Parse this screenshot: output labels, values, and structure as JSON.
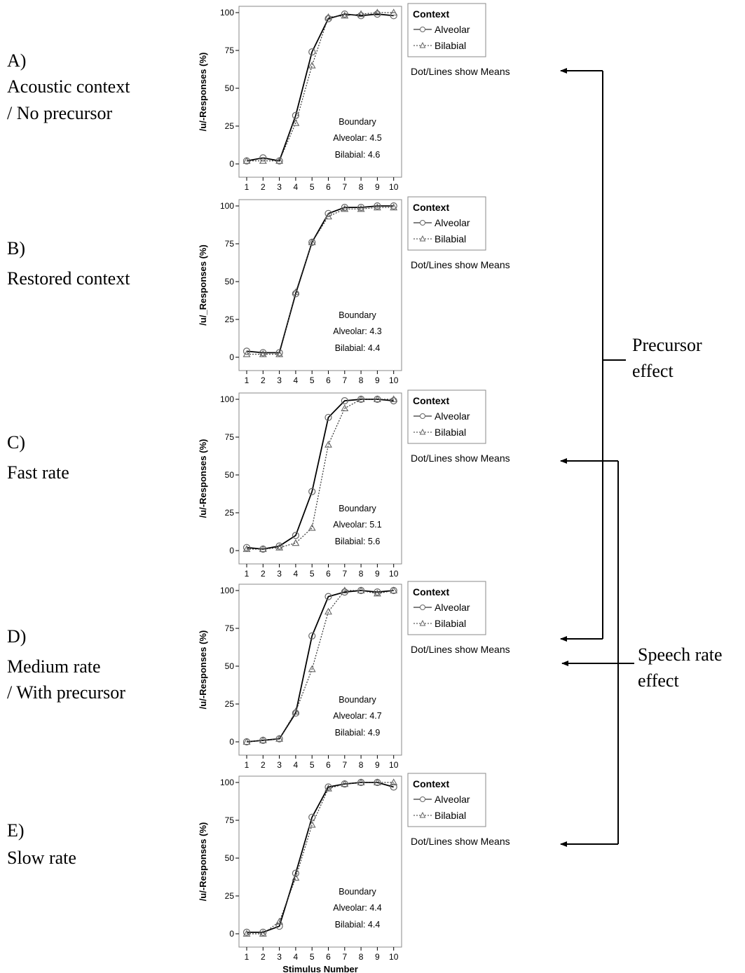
{
  "panels": [
    {
      "letter": "A)",
      "caption_lines": [
        "Acoustic context",
        "/ No precursor"
      ],
      "boundary": {
        "title": "Boundary",
        "alveolar": "Alveolar: 4.5",
        "bilabial": "Bilabial:  4.6"
      }
    },
    {
      "letter": "B)",
      "caption_lines": [
        "Restored context"
      ],
      "boundary": {
        "title": "Boundary",
        "alveolar": "Alveolar: 4.3",
        "bilabial": "Bilabial:  4.4"
      }
    },
    {
      "letter": "C)",
      "caption_lines": [
        "Fast rate"
      ],
      "boundary": {
        "title": "Boundary",
        "alveolar": "Alveolar: 5.1",
        "bilabial": "Bilabial:  5.6"
      }
    },
    {
      "letter": "D)",
      "caption_lines": [
        "Medium rate",
        "/ With precursor"
      ],
      "boundary": {
        "title": "Boundary",
        "alveolar": "Alveolar: 4.7",
        "bilabial": "Bilabial:  4.9"
      }
    },
    {
      "letter": "E)",
      "caption_lines": [
        "Slow rate"
      ],
      "boundary": {
        "title": "Boundary",
        "alveolar": "Alveolar: 4.4",
        "bilabial": "Bilabial:  4.4"
      }
    }
  ],
  "legend": {
    "title": "Context",
    "alveolar": "Alveolar",
    "bilabial": "Bilabial",
    "note": "Dot/Lines show Means"
  },
  "effects": {
    "precursor": [
      "Precursor",
      "effect"
    ],
    "speech_rate": [
      "Speech rate",
      "effect"
    ]
  },
  "chart_data": [
    {
      "type": "line",
      "xlabel": "",
      "ylabel": "/u/-Responses (%)",
      "x": [
        1,
        2,
        3,
        4,
        5,
        6,
        7,
        8,
        9,
        10
      ],
      "ylim": [
        0,
        100
      ],
      "yticks": [
        0,
        25,
        50,
        75,
        100
      ],
      "series": [
        {
          "name": "Alveolar",
          "marker": "circle",
          "line": "solid",
          "values": [
            2,
            4,
            2,
            32,
            74,
            96,
            99,
            98,
            99,
            98
          ]
        },
        {
          "name": "Bilabial",
          "marker": "triangle",
          "line": "dotted",
          "values": [
            2,
            2,
            2,
            27,
            65,
            97,
            98,
            99,
            100,
            100
          ]
        }
      ]
    },
    {
      "type": "line",
      "xlabel": "",
      "ylabel": "/u/_Responses (%)",
      "x": [
        1,
        2,
        3,
        4,
        5,
        6,
        7,
        8,
        9,
        10
      ],
      "ylim": [
        0,
        100
      ],
      "yticks": [
        0,
        25,
        50,
        75,
        100
      ],
      "series": [
        {
          "name": "Alveolar",
          "marker": "circle",
          "line": "solid",
          "values": [
            4,
            3,
            3,
            42,
            76,
            95,
            99,
            99,
            100,
            100
          ]
        },
        {
          "name": "Bilabial",
          "marker": "triangle",
          "line": "dotted",
          "values": [
            2,
            2,
            2,
            43,
            76,
            93,
            98,
            98,
            99,
            99
          ]
        }
      ]
    },
    {
      "type": "line",
      "xlabel": "",
      "ylabel": "/u/-Responses (%)",
      "x": [
        1,
        2,
        3,
        4,
        5,
        6,
        7,
        8,
        9,
        10
      ],
      "ylim": [
        0,
        100
      ],
      "yticks": [
        0,
        25,
        50,
        75,
        100
      ],
      "series": [
        {
          "name": "Alveolar",
          "marker": "circle",
          "line": "solid",
          "values": [
            2,
            1,
            3,
            10,
            39,
            88,
            99,
            100,
            100,
            99
          ]
        },
        {
          "name": "Bilabial",
          "marker": "triangle",
          "line": "dotted",
          "values": [
            1,
            1,
            2,
            5,
            15,
            70,
            94,
            100,
            100,
            100
          ]
        }
      ]
    },
    {
      "type": "line",
      "xlabel": "",
      "ylabel": "/u/-Responses (%)",
      "x": [
        1,
        2,
        3,
        4,
        5,
        6,
        7,
        8,
        9,
        10
      ],
      "ylim": [
        0,
        100
      ],
      "yticks": [
        0,
        25,
        50,
        75,
        100
      ],
      "series": [
        {
          "name": "Alveolar",
          "marker": "circle",
          "line": "solid",
          "values": [
            0,
            1,
            2,
            19,
            70,
            96,
            99,
            100,
            99,
            100
          ]
        },
        {
          "name": "Bilabial",
          "marker": "triangle",
          "line": "dotted",
          "values": [
            0,
            1,
            2,
            20,
            48,
            86,
            100,
            100,
            98,
            100
          ]
        }
      ]
    },
    {
      "type": "line",
      "xlabel": "Stimulus Number",
      "ylabel": "/u/-Responses (%)",
      "x": [
        1,
        2,
        3,
        4,
        5,
        6,
        7,
        8,
        9,
        10
      ],
      "ylim": [
        0,
        100
      ],
      "yticks": [
        0,
        25,
        50,
        75,
        100
      ],
      "series": [
        {
          "name": "Alveolar",
          "marker": "circle",
          "line": "solid",
          "values": [
            1,
            1,
            5,
            40,
            77,
            97,
            99,
            100,
            100,
            97
          ]
        },
        {
          "name": "Bilabial",
          "marker": "triangle",
          "line": "dotted",
          "values": [
            0,
            0,
            8,
            37,
            72,
            96,
            99,
            100,
            100,
            100
          ]
        }
      ]
    }
  ]
}
